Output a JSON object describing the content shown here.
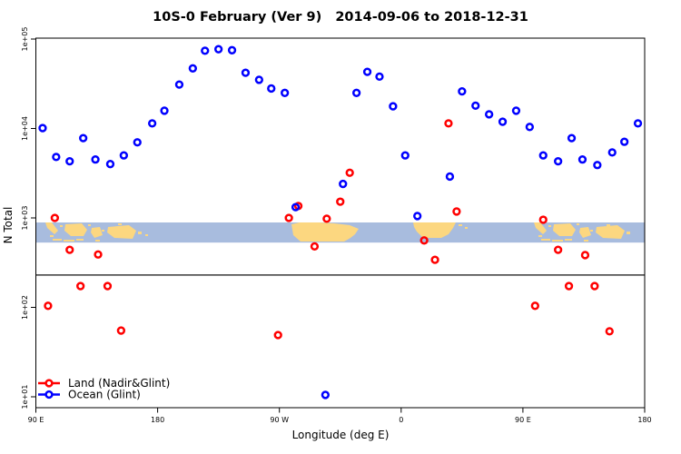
{
  "title": "10S-0 February (Ver 9)   2014-09-06 to 2018-12-31",
  "x_axis": {
    "label": "Longitude (deg E)",
    "ticks": [
      {
        "lon": 90,
        "label": "90 E"
      },
      {
        "lon": 180,
        "label": "180"
      },
      {
        "lon": 270,
        "label": "90 W"
      },
      {
        "lon": 360,
        "label": "0"
      },
      {
        "lon": 450,
        "label": "90 E"
      },
      {
        "lon": 540,
        "label": "180"
      }
    ]
  },
  "y_axis": {
    "label": "N Total",
    "ticks": [
      {
        "n": 100000,
        "label": "1e+05"
      },
      {
        "n": 10000,
        "label": "1e+04"
      },
      {
        "n": 1000,
        "label": "1e+03"
      },
      {
        "n": 100,
        "label": "1e+02"
      },
      {
        "n": 10,
        "label": "1e+01"
      }
    ]
  },
  "legend": {
    "items": [
      {
        "name": "land",
        "label": "Land (Nadir&Glint)",
        "color": "#FF0000"
      },
      {
        "name": "ocean",
        "label": "Ocean (Glint)",
        "color": "#0000FF"
      }
    ]
  },
  "colors": {
    "land_series": "#FF0000",
    "ocean_series": "#0000FF",
    "map_ocean_band": "#A8BCDE",
    "map_land": "#FCD780",
    "reference_line": "#3a3a3a",
    "axis": "#000000"
  },
  "reference_line": {
    "n": 230
  },
  "map_band": {
    "top_n": 890,
    "bottom_n": 530
  },
  "chart_data": {
    "type": "scatter",
    "title": "10S-0 February (Ver 9)   2014-09-06 to 2018-12-31",
    "xlabel": "Longitude (deg E)",
    "ylabel": "N Total",
    "y_scale": "log10",
    "ylim": [
      10,
      100000
    ],
    "x_axis_note": "Longitude axis runs eastward from 90E, wrapping past 180 and 0 back to 180 (internal units 90..540 deg)",
    "xlim": [
      90,
      540
    ],
    "grid": false,
    "legend_position": "bottom-left",
    "marker": "open-circle",
    "series": [
      {
        "name": "Land (Nadir&Glint)",
        "color": "#FF0000",
        "points": [
          [
            99,
            104
          ],
          [
            104,
            1000
          ],
          [
            115,
            440
          ],
          [
            123,
            173
          ],
          [
            136,
            390
          ],
          [
            143,
            173
          ],
          [
            153,
            55
          ],
          [
            269,
            49
          ],
          [
            277,
            1000
          ],
          [
            284,
            1360
          ],
          [
            296,
            480
          ],
          [
            305,
            980
          ],
          [
            315,
            1520
          ],
          [
            322,
            3200
          ],
          [
            377,
            560
          ],
          [
            385,
            340
          ],
          [
            395,
            11400
          ],
          [
            401,
            1180
          ],
          [
            459,
            104
          ],
          [
            465,
            955
          ],
          [
            476,
            440
          ],
          [
            484,
            173
          ],
          [
            496,
            384
          ],
          [
            503,
            173
          ],
          [
            514,
            54
          ]
        ]
      },
      {
        "name": "Ocean (Glint)",
        "color": "#0000FF",
        "points": [
          [
            95,
            10100
          ],
          [
            105,
            4800
          ],
          [
            115,
            4300
          ],
          [
            125,
            7800
          ],
          [
            134,
            4500
          ],
          [
            145,
            4000
          ],
          [
            155,
            5000
          ],
          [
            165,
            7000
          ],
          [
            176,
            11400
          ],
          [
            185,
            15800
          ],
          [
            196,
            31000
          ],
          [
            206,
            47000
          ],
          [
            215,
            74000
          ],
          [
            225,
            77000
          ],
          [
            235,
            75000
          ],
          [
            245,
            42000
          ],
          [
            255,
            35000
          ],
          [
            264,
            28000
          ],
          [
            274,
            25000
          ],
          [
            282,
            1320
          ],
          [
            304,
            10.5
          ],
          [
            317,
            2400
          ],
          [
            327,
            25000
          ],
          [
            335,
            43000
          ],
          [
            344,
            38000
          ],
          [
            354,
            17700
          ],
          [
            363,
            5000
          ],
          [
            372,
            1050
          ],
          [
            396,
            2900
          ],
          [
            405,
            26000
          ],
          [
            415,
            18000
          ],
          [
            425,
            14400
          ],
          [
            435,
            11900
          ],
          [
            445,
            15800
          ],
          [
            455,
            10400
          ],
          [
            465,
            5000
          ],
          [
            476,
            4300
          ],
          [
            486,
            7800
          ],
          [
            494,
            4500
          ],
          [
            505,
            3900
          ],
          [
            516,
            5400
          ],
          [
            525,
            7100
          ],
          [
            535,
            11400
          ]
        ]
      }
    ]
  }
}
